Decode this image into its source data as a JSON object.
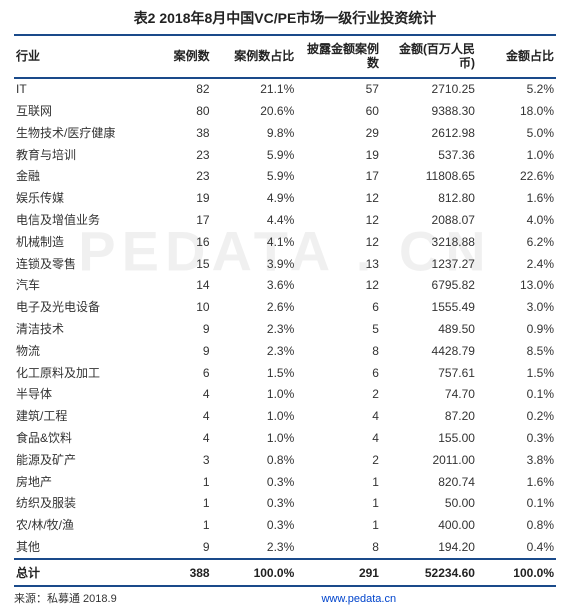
{
  "title": "表2  2018年8月中国VC/PE市场一级行业投资统计",
  "watermark": "PEDATA . CN",
  "columns": [
    {
      "label": "行业",
      "width": "22%"
    },
    {
      "label": "案例数",
      "width": "13%"
    },
    {
      "label": "案例数占比",
      "width": "15%"
    },
    {
      "label": "披露金额案例数",
      "width": "15%"
    },
    {
      "label": "金额(百万人民币)",
      "width": "17%"
    },
    {
      "label": "金额占比",
      "width": "14%"
    }
  ],
  "rows": [
    [
      "IT",
      "82",
      "21.1%",
      "57",
      "2710.25",
      "5.2%"
    ],
    [
      "互联网",
      "80",
      "20.6%",
      "60",
      "9388.30",
      "18.0%"
    ],
    [
      "生物技术/医疗健康",
      "38",
      "9.8%",
      "29",
      "2612.98",
      "5.0%"
    ],
    [
      "教育与培训",
      "23",
      "5.9%",
      "19",
      "537.36",
      "1.0%"
    ],
    [
      "金融",
      "23",
      "5.9%",
      "17",
      "11808.65",
      "22.6%"
    ],
    [
      "娱乐传媒",
      "19",
      "4.9%",
      "12",
      "812.80",
      "1.6%"
    ],
    [
      "电信及增值业务",
      "17",
      "4.4%",
      "12",
      "2088.07",
      "4.0%"
    ],
    [
      "机械制造",
      "16",
      "4.1%",
      "12",
      "3218.88",
      "6.2%"
    ],
    [
      "连锁及零售",
      "15",
      "3.9%",
      "13",
      "1237.27",
      "2.4%"
    ],
    [
      "汽车",
      "14",
      "3.6%",
      "12",
      "6795.82",
      "13.0%"
    ],
    [
      "电子及光电设备",
      "10",
      "2.6%",
      "6",
      "1555.49",
      "3.0%"
    ],
    [
      "清洁技术",
      "9",
      "2.3%",
      "5",
      "489.50",
      "0.9%"
    ],
    [
      "物流",
      "9",
      "2.3%",
      "8",
      "4428.79",
      "8.5%"
    ],
    [
      "化工原料及加工",
      "6",
      "1.5%",
      "6",
      "757.61",
      "1.5%"
    ],
    [
      "半导体",
      "4",
      "1.0%",
      "2",
      "74.70",
      "0.1%"
    ],
    [
      "建筑/工程",
      "4",
      "1.0%",
      "4",
      "87.20",
      "0.2%"
    ],
    [
      "食品&饮料",
      "4",
      "1.0%",
      "4",
      "155.00",
      "0.3%"
    ],
    [
      "能源及矿产",
      "3",
      "0.8%",
      "2",
      "2011.00",
      "3.8%"
    ],
    [
      "房地产",
      "1",
      "0.3%",
      "1",
      "820.74",
      "1.6%"
    ],
    [
      "纺织及服装",
      "1",
      "0.3%",
      "1",
      "50.00",
      "0.1%"
    ],
    [
      "农/林/牧/渔",
      "1",
      "0.3%",
      "1",
      "400.00",
      "0.8%"
    ],
    [
      "其他",
      "9",
      "2.3%",
      "8",
      "194.20",
      "0.4%"
    ]
  ],
  "total": [
    "总计",
    "388",
    "100.0%",
    "291",
    "52234.60",
    "100.0%"
  ],
  "source": {
    "prefix": "来源：私募通 2018.9",
    "link": "www.pedata.cn"
  },
  "colors": {
    "border": "#1a4a8a",
    "link": "#0044cc"
  }
}
